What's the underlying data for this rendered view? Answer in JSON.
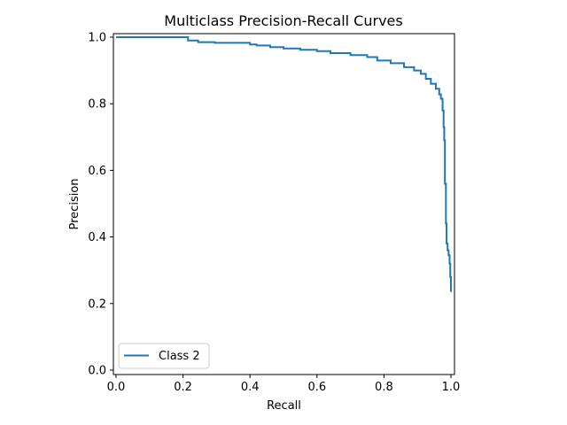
{
  "chart_data": {
    "type": "line",
    "title": "Multiclass Precision-Recall Curves",
    "xlabel": "Recall",
    "ylabel": "Precision",
    "xlim": [
      0.0,
      1.0
    ],
    "ylim": [
      0.0,
      1.0
    ],
    "xticks": [
      0.0,
      0.2,
      0.4,
      0.6,
      0.8,
      1.0
    ],
    "yticks": [
      0.0,
      0.2,
      0.4,
      0.6,
      0.8,
      1.0
    ],
    "xtick_labels": [
      "0.0",
      "0.2",
      "0.4",
      "0.6",
      "0.8",
      "1.0"
    ],
    "ytick_labels": [
      "0.0",
      "0.2",
      "0.4",
      "0.6",
      "0.8",
      "1.0"
    ],
    "grid": false,
    "legend_position": "lower-left",
    "series": [
      {
        "name": "Class 2",
        "color": "#1f77b4",
        "step": true,
        "x": [
          0.0,
          0.215,
          0.215,
          0.245,
          0.245,
          0.295,
          0.295,
          0.4,
          0.4,
          0.42,
          0.42,
          0.46,
          0.46,
          0.5,
          0.5,
          0.55,
          0.55,
          0.6,
          0.6,
          0.64,
          0.64,
          0.7,
          0.7,
          0.75,
          0.75,
          0.78,
          0.78,
          0.82,
          0.82,
          0.86,
          0.86,
          0.89,
          0.89,
          0.91,
          0.91,
          0.925,
          0.925,
          0.94,
          0.94,
          0.955,
          0.955,
          0.965,
          0.965,
          0.97,
          0.97,
          0.975,
          0.975,
          0.978,
          0.978,
          0.98,
          0.98,
          0.982,
          0.982,
          0.985,
          0.985,
          0.987,
          0.987,
          0.99,
          0.99,
          0.993,
          0.993,
          0.996,
          0.996,
          0.998,
          0.998,
          1.0,
          1.0
        ],
        "y": [
          1.0,
          1.0,
          0.99,
          0.99,
          0.985,
          0.985,
          0.983,
          0.983,
          0.978,
          0.978,
          0.975,
          0.975,
          0.97,
          0.97,
          0.966,
          0.966,
          0.962,
          0.962,
          0.958,
          0.958,
          0.952,
          0.952,
          0.946,
          0.946,
          0.94,
          0.94,
          0.93,
          0.93,
          0.922,
          0.922,
          0.91,
          0.91,
          0.9,
          0.9,
          0.89,
          0.89,
          0.875,
          0.875,
          0.86,
          0.86,
          0.845,
          0.845,
          0.828,
          0.828,
          0.815,
          0.815,
          0.78,
          0.78,
          0.73,
          0.73,
          0.69,
          0.69,
          0.56,
          0.56,
          0.44,
          0.44,
          0.38,
          0.38,
          0.36,
          0.36,
          0.345,
          0.345,
          0.32,
          0.32,
          0.28,
          0.28,
          0.235
        ]
      }
    ]
  }
}
